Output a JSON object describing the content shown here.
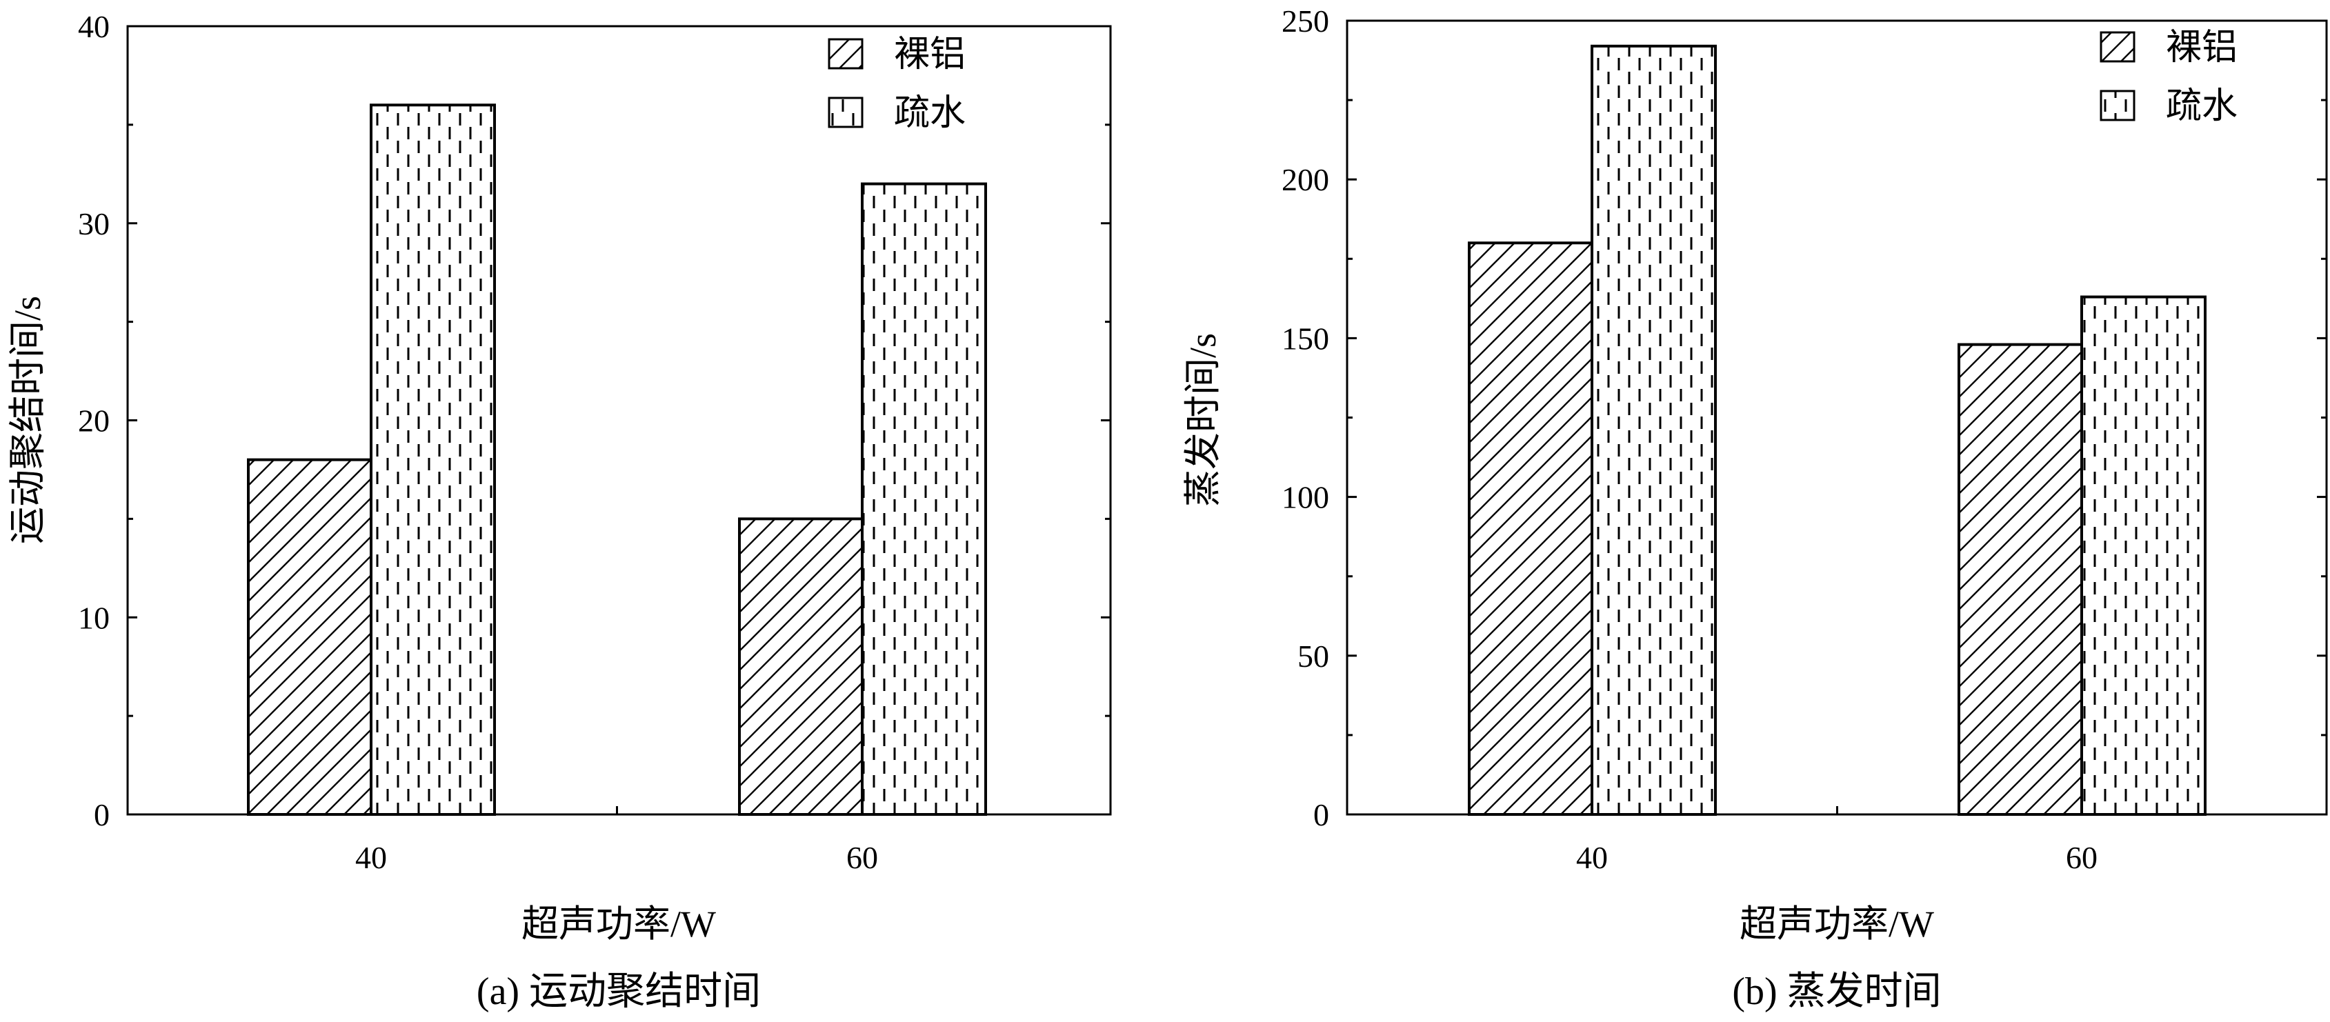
{
  "chart_data": [
    {
      "id": "a",
      "type": "bar",
      "categories": [
        "40",
        "60"
      ],
      "series": [
        {
          "name": "裸铝",
          "values": [
            18,
            15
          ],
          "pattern": "diagonal-hatch"
        },
        {
          "name": "疏水",
          "values": [
            36,
            32
          ],
          "pattern": "dashed-vertical"
        }
      ],
      "xlabel": "超声功率/W",
      "ylabel": "运动聚结时间/s",
      "ylim": [
        0,
        40
      ],
      "yticks": [
        "0",
        "10",
        "20",
        "30",
        "40"
      ],
      "caption": "(a) 运动聚结时间",
      "legend_position": "top-right",
      "grid": false
    },
    {
      "id": "b",
      "type": "bar",
      "categories": [
        "40",
        "60"
      ],
      "series": [
        {
          "name": "裸铝",
          "values": [
            180,
            148
          ],
          "pattern": "diagonal-hatch"
        },
        {
          "name": "疏水",
          "values": [
            242,
            163
          ],
          "pattern": "dashed-vertical"
        }
      ],
      "xlabel": "超声功率/W",
      "ylabel": "蒸发时间/s",
      "ylim": [
        0,
        250
      ],
      "yticks": [
        "0",
        "50",
        "100",
        "150",
        "200",
        "250"
      ],
      "caption": "(b) 蒸发时间",
      "legend_position": "top-right",
      "grid": false
    }
  ],
  "colors": {
    "ink": "#000000",
    "background": "#ffffff"
  }
}
